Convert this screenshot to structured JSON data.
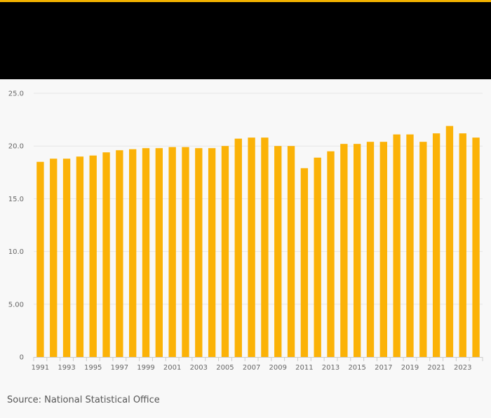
{
  "source": "Source: National Statistical Office",
  "colors": {
    "bar": "#fbb207",
    "header": "#000000",
    "accent": "#f2b200",
    "grid": "#e6e6e6"
  },
  "chart_data": {
    "type": "bar",
    "x": [
      1991,
      1992,
      1993,
      1994,
      1995,
      1996,
      1997,
      1998,
      1999,
      2000,
      2001,
      2002,
      2003,
      2004,
      2005,
      2006,
      2007,
      2008,
      2009,
      2010,
      2011,
      2012,
      2013,
      2014,
      2015,
      2016,
      2017,
      2018,
      2019,
      2020,
      2021,
      2022,
      2023,
      2024
    ],
    "values": [
      18.5,
      18.8,
      18.8,
      19.0,
      19.1,
      19.4,
      19.6,
      19.7,
      19.8,
      19.8,
      19.9,
      19.9,
      19.8,
      19.8,
      20.0,
      20.7,
      20.8,
      20.8,
      20.0,
      20.0,
      17.9,
      18.9,
      19.5,
      20.2,
      20.2,
      20.4,
      20.4,
      21.1,
      21.1,
      20.4,
      21.2,
      21.9,
      21.2,
      20.8
    ],
    "x_tick_labels": [
      "1991",
      "1993",
      "1995",
      "1997",
      "1999",
      "2001",
      "2003",
      "2005",
      "2007",
      "2009",
      "2011",
      "2013",
      "2015",
      "2017",
      "2019",
      "2021",
      "2023"
    ],
    "y_ticks": [
      0,
      5,
      10,
      15,
      20,
      25
    ],
    "y_tick_labels": [
      "0",
      "5.00",
      "10.0",
      "15.0",
      "20.0",
      "25.0"
    ],
    "ylim": [
      0,
      25
    ],
    "grid": true,
    "legend": "none"
  }
}
